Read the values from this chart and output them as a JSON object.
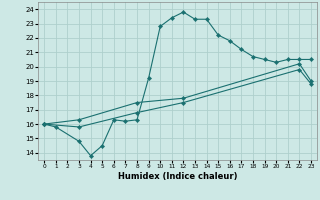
{
  "xlabel": "Humidex (Indice chaleur)",
  "xlim": [
    -0.5,
    23.5
  ],
  "ylim": [
    13.5,
    24.5
  ],
  "xticks": [
    0,
    1,
    2,
    3,
    4,
    5,
    6,
    7,
    8,
    9,
    10,
    11,
    12,
    13,
    14,
    15,
    16,
    17,
    18,
    19,
    20,
    21,
    22,
    23
  ],
  "yticks": [
    14,
    15,
    16,
    17,
    18,
    19,
    20,
    21,
    22,
    23,
    24
  ],
  "bg_color": "#cde8e5",
  "grid_color": "#aed0cc",
  "line_color": "#1a7070",
  "line1_x": [
    0,
    1,
    3,
    4,
    5,
    6,
    7,
    8,
    9,
    10,
    11,
    12,
    13,
    14,
    15,
    16,
    17,
    18,
    19,
    20,
    21,
    22,
    23
  ],
  "line1_y": [
    16,
    15.8,
    14.8,
    13.8,
    14.5,
    16.3,
    16.2,
    16.3,
    19.2,
    22.8,
    23.4,
    23.8,
    23.3,
    23.3,
    22.2,
    21.8,
    21.2,
    20.7,
    20.5,
    20.3,
    20.5,
    20.5,
    20.5
  ],
  "line2_x": [
    0,
    3,
    8,
    12,
    22,
    23
  ],
  "line2_y": [
    16,
    16.3,
    17.5,
    17.8,
    20.2,
    19.0
  ],
  "line3_x": [
    0,
    3,
    8,
    12,
    22,
    23
  ],
  "line3_y": [
    16,
    15.8,
    16.8,
    17.5,
    19.8,
    18.8
  ]
}
